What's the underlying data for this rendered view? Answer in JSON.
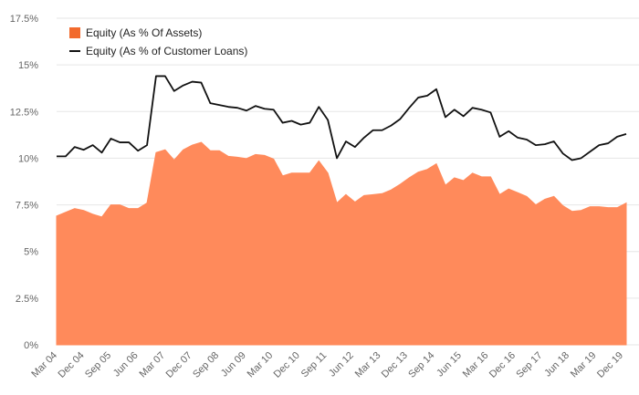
{
  "chart_data": {
    "type": "area",
    "x_tick_labels": [
      "Mar 04",
      "Dec 04",
      "Sep 05",
      "Jun 06",
      "Mar 07",
      "Dec 07",
      "Sep 08",
      "Jun 09",
      "Mar 10",
      "Dec 10",
      "Sep 11",
      "Jun 12",
      "Mar 13",
      "Dec 13",
      "Sep 14",
      "Jun 15",
      "Mar 16",
      "Dec 16",
      "Sep 17",
      "Jun 18",
      "Mar 19",
      "Dec 19"
    ],
    "y_tick_labels": [
      "0%",
      "2.5%",
      "5%",
      "7.5%",
      "10%",
      "12.5%",
      "15%",
      "17.5%"
    ],
    "ylim": [
      0,
      17.5
    ],
    "y_ticks": [
      0,
      2.5,
      5,
      7.5,
      10,
      12.5,
      15,
      17.5
    ],
    "grid": true,
    "legend_position": "top-left",
    "series": [
      {
        "name": "Equity (As % Of Assets)",
        "type": "area",
        "color": "#ff8a5b",
        "swatch_color": "#f26a2d",
        "values": [
          6.9,
          7.1,
          7.3,
          7.2,
          7.0,
          6.85,
          7.5,
          7.5,
          7.3,
          7.3,
          7.6,
          10.3,
          10.45,
          9.9,
          10.45,
          10.7,
          10.85,
          10.4,
          10.4,
          10.1,
          10.05,
          9.98,
          10.2,
          10.15,
          9.95,
          9.05,
          9.2,
          9.2,
          9.2,
          9.85,
          9.2,
          7.6,
          8.05,
          7.65,
          8.0,
          8.05,
          8.1,
          8.3,
          8.6,
          8.95,
          9.25,
          9.4,
          9.7,
          8.55,
          8.95,
          8.8,
          9.2,
          9.0,
          9.0,
          8.05,
          8.35,
          8.15,
          7.95,
          7.5,
          7.8,
          7.95,
          7.45,
          7.15,
          7.2,
          7.4,
          7.4,
          7.35,
          7.35,
          7.6
        ]
      },
      {
        "name": "Equity (As % of Customer Loans)",
        "type": "line",
        "color": "#111111",
        "values": [
          10.1,
          10.1,
          10.6,
          10.45,
          10.7,
          10.3,
          11.05,
          10.85,
          10.85,
          10.4,
          10.7,
          14.4,
          14.4,
          13.6,
          13.9,
          14.1,
          14.05,
          12.95,
          12.85,
          12.75,
          12.7,
          12.55,
          12.8,
          12.65,
          12.6,
          11.9,
          12.0,
          11.8,
          11.9,
          12.75,
          12.05,
          10.0,
          10.9,
          10.6,
          11.1,
          11.5,
          11.5,
          11.75,
          12.1,
          12.7,
          13.25,
          13.35,
          13.7,
          12.2,
          12.6,
          12.25,
          12.7,
          12.6,
          12.45,
          11.15,
          11.45,
          11.1,
          11.0,
          10.7,
          10.75,
          10.9,
          10.25,
          9.9,
          10.0,
          10.35,
          10.7,
          10.8,
          11.15,
          11.3
        ]
      }
    ]
  }
}
